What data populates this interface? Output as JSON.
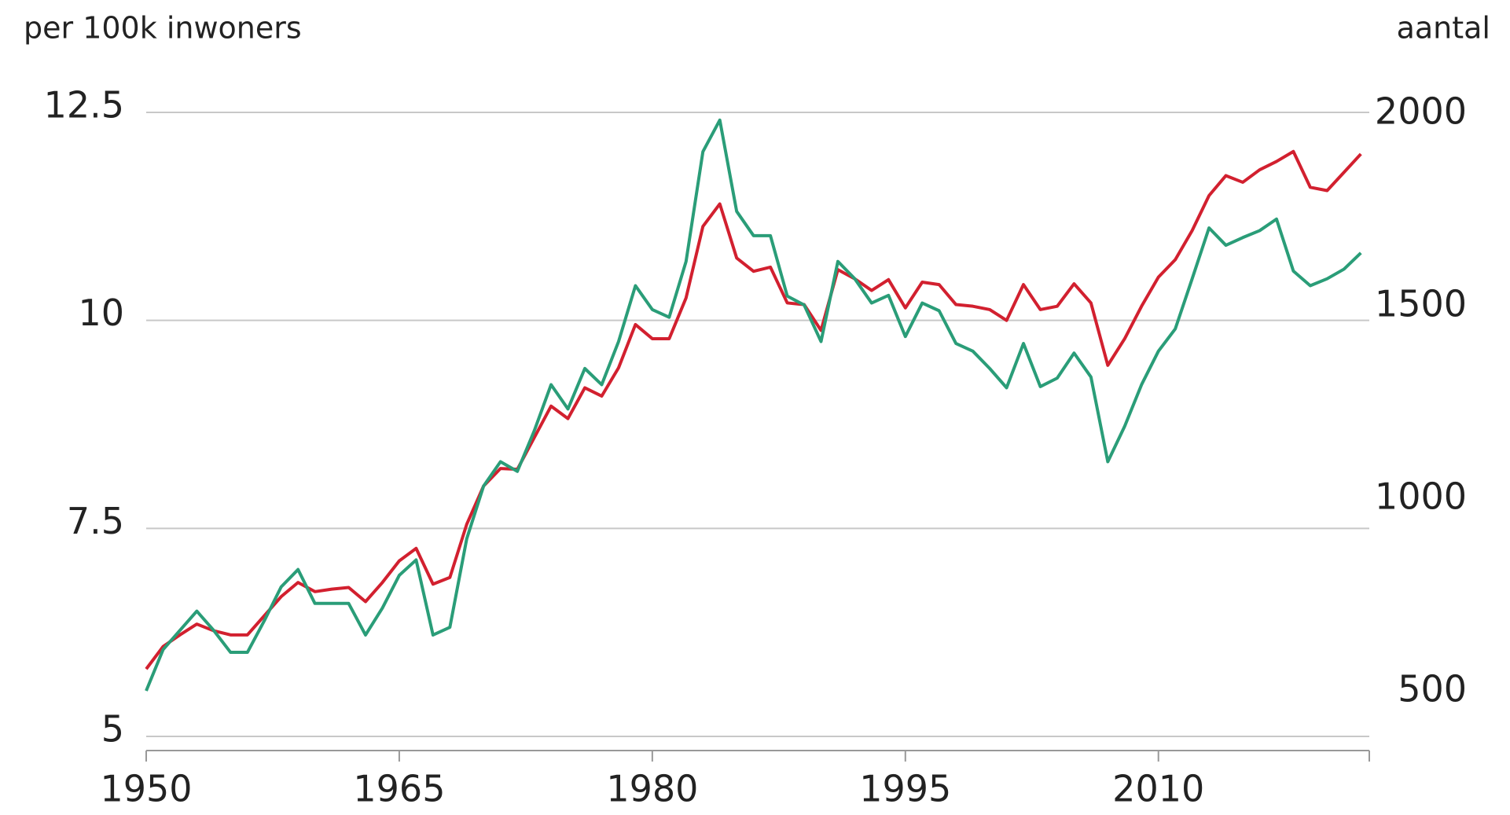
{
  "chart_data": {
    "type": "line",
    "ylabel": "per 100k inwoners",
    "y2label": "aantal",
    "x": [
      1950,
      1951,
      1952,
      1953,
      1954,
      1955,
      1956,
      1957,
      1958,
      1959,
      1960,
      1961,
      1962,
      1963,
      1964,
      1965,
      1966,
      1967,
      1968,
      1969,
      1970,
      1971,
      1972,
      1973,
      1974,
      1975,
      1976,
      1977,
      1978,
      1979,
      1980,
      1981,
      1982,
      1983,
      1984,
      1985,
      1986,
      1987,
      1988,
      1989,
      1990,
      1991,
      1992,
      1993,
      1994,
      1995,
      1996,
      1997,
      1998,
      1999,
      2000,
      2001,
      2002,
      2003,
      2004,
      2005,
      2006,
      2007,
      2008,
      2009,
      2010,
      2011,
      2012,
      2013,
      2014,
      2015,
      2016,
      2017,
      2018,
      2019,
      2020,
      2021,
      2022
    ],
    "series": [
      {
        "color": "#d2202f",
        "axis": "y",
        "values": [
          5.81,
          6.08,
          6.22,
          6.35,
          6.27,
          6.22,
          6.22,
          6.45,
          6.68,
          6.85,
          6.74,
          6.77,
          6.79,
          6.62,
          6.85,
          7.11,
          7.26,
          6.83,
          6.91,
          7.55,
          8.01,
          8.22,
          8.21,
          8.59,
          8.97,
          8.82,
          9.19,
          9.09,
          9.43,
          9.95,
          9.78,
          9.78,
          10.27,
          11.13,
          11.4,
          10.75,
          10.59,
          10.64,
          10.21,
          10.19,
          9.88,
          10.61,
          10.5,
          10.36,
          10.49,
          10.15,
          10.46,
          10.43,
          10.19,
          10.17,
          10.13,
          10.0,
          10.43,
          10.13,
          10.17,
          10.44,
          10.21,
          9.46,
          9.78,
          10.17,
          10.52,
          10.73,
          11.08,
          11.5,
          11.74,
          11.66,
          11.81,
          11.91,
          12.03,
          11.6,
          11.56,
          11.78,
          12.0
        ]
      },
      {
        "color": "#2a9d78",
        "axis": "y2",
        "values": [
          498,
          605,
          655,
          705,
          655,
          598,
          598,
          680,
          768,
          813,
          725,
          725,
          725,
          643,
          713,
          798,
          838,
          643,
          663,
          893,
          1030,
          1093,
          1068,
          1173,
          1293,
          1230,
          1335,
          1293,
          1405,
          1550,
          1488,
          1468,
          1613,
          1898,
          1980,
          1743,
          1680,
          1680,
          1523,
          1500,
          1405,
          1613,
          1568,
          1505,
          1525,
          1418,
          1505,
          1485,
          1400,
          1380,
          1335,
          1285,
          1400,
          1288,
          1310,
          1375,
          1313,
          1093,
          1185,
          1293,
          1380,
          1438,
          1568,
          1700,
          1655,
          1675,
          1693,
          1723,
          1588,
          1550,
          1568,
          1593,
          1635
        ]
      }
    ],
    "xlim": [
      1950,
      2022.5
    ],
    "xticks": [
      1950,
      1965,
      1980,
      1995,
      2010
    ],
    "ylim": [
      4.83,
      12.5
    ],
    "yticks": [
      5,
      7.5,
      10,
      12.5
    ],
    "y2lim": [
      343,
      2000
    ],
    "y2ticks": [
      500,
      1000,
      1500,
      2000
    ],
    "grid": true
  }
}
